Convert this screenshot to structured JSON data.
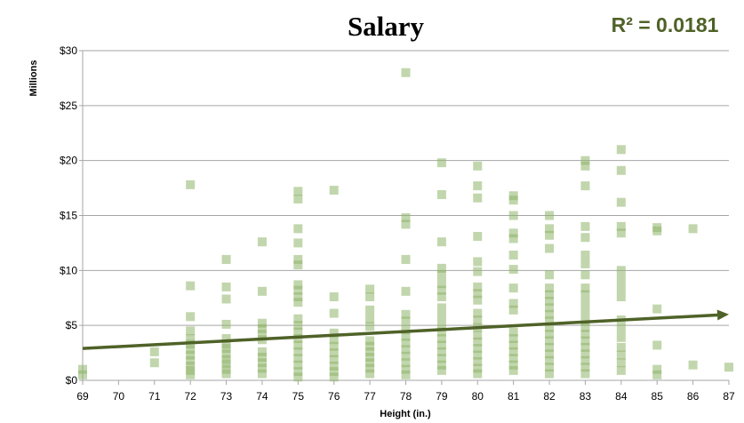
{
  "chart_data": {
    "type": "scatter",
    "title": "Salary",
    "annotation": "R² = 0.0181",
    "xlabel": "Height (in.)",
    "ylabel": "Millions",
    "xlim": [
      69,
      87
    ],
    "ylim": [
      0,
      30
    ],
    "x_ticks": [
      "69",
      "70",
      "71",
      "72",
      "73",
      "74",
      "75",
      "76",
      "77",
      "78",
      "79",
      "80",
      "81",
      "82",
      "83",
      "84",
      "85",
      "86",
      "87"
    ],
    "y_ticks": [
      "$0",
      "$5",
      "$10",
      "$15",
      "$20",
      "$25",
      "$30"
    ],
    "grid": "horizontal",
    "legend": "none",
    "colors": {
      "point": "#8fb56a",
      "trend": "#4f6228",
      "annotation": "#4f6228",
      "grid": "#a6a6a6"
    },
    "trendline": {
      "x": [
        69,
        87
      ],
      "y": [
        2.9,
        6.0
      ]
    },
    "points": [
      {
        "x": 69,
        "y": 0.5
      },
      {
        "x": 69,
        "y": 1.0
      },
      {
        "x": 71,
        "y": 1.6
      },
      {
        "x": 71,
        "y": 2.6
      },
      {
        "x": 72,
        "y": 17.8
      },
      {
        "x": 72,
        "y": 8.6
      },
      {
        "x": 72,
        "y": 5.8
      },
      {
        "x": 72,
        "y": 4.5
      },
      {
        "x": 72,
        "y": 3.8
      },
      {
        "x": 72,
        "y": 3.3
      },
      {
        "x": 72,
        "y": 2.8
      },
      {
        "x": 72,
        "y": 2.3
      },
      {
        "x": 72,
        "y": 1.8
      },
      {
        "x": 72,
        "y": 1.3
      },
      {
        "x": 72,
        "y": 0.9
      },
      {
        "x": 72,
        "y": 0.5
      },
      {
        "x": 73,
        "y": 11.0
      },
      {
        "x": 73,
        "y": 8.5
      },
      {
        "x": 73,
        "y": 7.4
      },
      {
        "x": 73,
        "y": 5.1
      },
      {
        "x": 73,
        "y": 3.8
      },
      {
        "x": 73,
        "y": 3.3
      },
      {
        "x": 73,
        "y": 2.9
      },
      {
        "x": 73,
        "y": 2.4
      },
      {
        "x": 73,
        "y": 1.9
      },
      {
        "x": 73,
        "y": 1.5
      },
      {
        "x": 73,
        "y": 1.0
      },
      {
        "x": 73,
        "y": 0.6
      },
      {
        "x": 74,
        "y": 12.6
      },
      {
        "x": 74,
        "y": 8.1
      },
      {
        "x": 74,
        "y": 5.2
      },
      {
        "x": 74,
        "y": 4.7
      },
      {
        "x": 74,
        "y": 4.2
      },
      {
        "x": 74,
        "y": 3.7
      },
      {
        "x": 74,
        "y": 2.6
      },
      {
        "x": 74,
        "y": 2.1
      },
      {
        "x": 74,
        "y": 1.6
      },
      {
        "x": 74,
        "y": 1.1
      },
      {
        "x": 74,
        "y": 0.6
      },
      {
        "x": 75,
        "y": 17.2
      },
      {
        "x": 75,
        "y": 16.5
      },
      {
        "x": 75,
        "y": 13.8
      },
      {
        "x": 75,
        "y": 12.5
      },
      {
        "x": 75,
        "y": 11.0
      },
      {
        "x": 75,
        "y": 10.5
      },
      {
        "x": 75,
        "y": 8.7
      },
      {
        "x": 75,
        "y": 8.2
      },
      {
        "x": 75,
        "y": 7.6
      },
      {
        "x": 75,
        "y": 7.1
      },
      {
        "x": 75,
        "y": 5.6
      },
      {
        "x": 75,
        "y": 5.0
      },
      {
        "x": 75,
        "y": 4.4
      },
      {
        "x": 75,
        "y": 3.8
      },
      {
        "x": 75,
        "y": 3.2
      },
      {
        "x": 75,
        "y": 2.6
      },
      {
        "x": 75,
        "y": 2.0
      },
      {
        "x": 75,
        "y": 1.4
      },
      {
        "x": 75,
        "y": 0.8
      },
      {
        "x": 75,
        "y": 0.3
      },
      {
        "x": 76,
        "y": 17.3
      },
      {
        "x": 76,
        "y": 7.6
      },
      {
        "x": 76,
        "y": 6.1
      },
      {
        "x": 76,
        "y": 4.3
      },
      {
        "x": 76,
        "y": 3.7
      },
      {
        "x": 76,
        "y": 3.1
      },
      {
        "x": 76,
        "y": 2.5
      },
      {
        "x": 76,
        "y": 1.9
      },
      {
        "x": 76,
        "y": 1.3
      },
      {
        "x": 76,
        "y": 0.8
      },
      {
        "x": 76,
        "y": 0.3
      },
      {
        "x": 77,
        "y": 8.3
      },
      {
        "x": 77,
        "y": 7.6
      },
      {
        "x": 77,
        "y": 6.4
      },
      {
        "x": 77,
        "y": 5.6
      },
      {
        "x": 77,
        "y": 4.9
      },
      {
        "x": 77,
        "y": 3.6
      },
      {
        "x": 77,
        "y": 3.1
      },
      {
        "x": 77,
        "y": 2.6
      },
      {
        "x": 77,
        "y": 2.1
      },
      {
        "x": 77,
        "y": 1.6
      },
      {
        "x": 77,
        "y": 1.1
      },
      {
        "x": 77,
        "y": 0.6
      },
      {
        "x": 78,
        "y": 28.0
      },
      {
        "x": 78,
        "y": 14.8
      },
      {
        "x": 78,
        "y": 14.2
      },
      {
        "x": 78,
        "y": 11.0
      },
      {
        "x": 78,
        "y": 8.1
      },
      {
        "x": 78,
        "y": 6.0
      },
      {
        "x": 78,
        "y": 5.4
      },
      {
        "x": 78,
        "y": 4.6
      },
      {
        "x": 78,
        "y": 4.0
      },
      {
        "x": 78,
        "y": 3.4
      },
      {
        "x": 78,
        "y": 2.8
      },
      {
        "x": 78,
        "y": 2.2
      },
      {
        "x": 78,
        "y": 1.6
      },
      {
        "x": 78,
        "y": 1.0
      },
      {
        "x": 78,
        "y": 0.5
      },
      {
        "x": 79,
        "y": 19.8
      },
      {
        "x": 79,
        "y": 16.9
      },
      {
        "x": 79,
        "y": 12.6
      },
      {
        "x": 79,
        "y": 10.2
      },
      {
        "x": 79,
        "y": 9.6
      },
      {
        "x": 79,
        "y": 8.8
      },
      {
        "x": 79,
        "y": 8.2
      },
      {
        "x": 79,
        "y": 7.6
      },
      {
        "x": 79,
        "y": 6.6
      },
      {
        "x": 79,
        "y": 5.8
      },
      {
        "x": 79,
        "y": 5.0
      },
      {
        "x": 79,
        "y": 4.4
      },
      {
        "x": 79,
        "y": 3.8
      },
      {
        "x": 79,
        "y": 3.2
      },
      {
        "x": 79,
        "y": 2.6
      },
      {
        "x": 79,
        "y": 2.0
      },
      {
        "x": 79,
        "y": 1.4
      },
      {
        "x": 79,
        "y": 0.9
      },
      {
        "x": 80,
        "y": 19.5
      },
      {
        "x": 80,
        "y": 17.7
      },
      {
        "x": 80,
        "y": 16.6
      },
      {
        "x": 80,
        "y": 13.1
      },
      {
        "x": 80,
        "y": 10.8
      },
      {
        "x": 80,
        "y": 9.9
      },
      {
        "x": 80,
        "y": 8.5
      },
      {
        "x": 80,
        "y": 7.9
      },
      {
        "x": 80,
        "y": 7.3
      },
      {
        "x": 80,
        "y": 6.1
      },
      {
        "x": 80,
        "y": 5.5
      },
      {
        "x": 80,
        "y": 4.8
      },
      {
        "x": 80,
        "y": 4.1
      },
      {
        "x": 80,
        "y": 3.5
      },
      {
        "x": 80,
        "y": 2.9
      },
      {
        "x": 80,
        "y": 2.3
      },
      {
        "x": 80,
        "y": 1.7
      },
      {
        "x": 80,
        "y": 1.1
      },
      {
        "x": 80,
        "y": 0.6
      },
      {
        "x": 81,
        "y": 16.8
      },
      {
        "x": 81,
        "y": 16.4
      },
      {
        "x": 81,
        "y": 15.0
      },
      {
        "x": 81,
        "y": 13.4
      },
      {
        "x": 81,
        "y": 12.9
      },
      {
        "x": 81,
        "y": 11.4
      },
      {
        "x": 81,
        "y": 10.1
      },
      {
        "x": 81,
        "y": 8.4
      },
      {
        "x": 81,
        "y": 7.0
      },
      {
        "x": 81,
        "y": 6.4
      },
      {
        "x": 81,
        "y": 4.4
      },
      {
        "x": 81,
        "y": 3.8
      },
      {
        "x": 81,
        "y": 3.2
      },
      {
        "x": 81,
        "y": 2.6
      },
      {
        "x": 81,
        "y": 2.0
      },
      {
        "x": 81,
        "y": 1.4
      },
      {
        "x": 81,
        "y": 0.9
      },
      {
        "x": 82,
        "y": 15.0
      },
      {
        "x": 82,
        "y": 13.8
      },
      {
        "x": 82,
        "y": 13.2
      },
      {
        "x": 82,
        "y": 12.0
      },
      {
        "x": 82,
        "y": 9.6
      },
      {
        "x": 82,
        "y": 8.4
      },
      {
        "x": 82,
        "y": 7.8
      },
      {
        "x": 82,
        "y": 7.2
      },
      {
        "x": 82,
        "y": 6.6
      },
      {
        "x": 82,
        "y": 6.0
      },
      {
        "x": 82,
        "y": 5.4
      },
      {
        "x": 82,
        "y": 4.8
      },
      {
        "x": 82,
        "y": 4.2
      },
      {
        "x": 82,
        "y": 3.6
      },
      {
        "x": 82,
        "y": 3.0
      },
      {
        "x": 82,
        "y": 2.4
      },
      {
        "x": 82,
        "y": 1.8
      },
      {
        "x": 82,
        "y": 1.2
      },
      {
        "x": 82,
        "y": 0.6
      },
      {
        "x": 83,
        "y": 20.0
      },
      {
        "x": 83,
        "y": 19.5
      },
      {
        "x": 83,
        "y": 17.7
      },
      {
        "x": 83,
        "y": 14.0
      },
      {
        "x": 83,
        "y": 13.0
      },
      {
        "x": 83,
        "y": 11.4
      },
      {
        "x": 83,
        "y": 10.6
      },
      {
        "x": 83,
        "y": 9.6
      },
      {
        "x": 83,
        "y": 8.4
      },
      {
        "x": 83,
        "y": 7.8
      },
      {
        "x": 83,
        "y": 7.0
      },
      {
        "x": 83,
        "y": 6.2
      },
      {
        "x": 83,
        "y": 5.4
      },
      {
        "x": 83,
        "y": 4.8
      },
      {
        "x": 83,
        "y": 4.2
      },
      {
        "x": 83,
        "y": 3.6
      },
      {
        "x": 83,
        "y": 3.0
      },
      {
        "x": 83,
        "y": 2.4
      },
      {
        "x": 83,
        "y": 1.8
      },
      {
        "x": 83,
        "y": 1.2
      },
      {
        "x": 83,
        "y": 0.6
      },
      {
        "x": 84,
        "y": 21.0
      },
      {
        "x": 84,
        "y": 19.1
      },
      {
        "x": 84,
        "y": 16.2
      },
      {
        "x": 84,
        "y": 14.0
      },
      {
        "x": 84,
        "y": 13.4
      },
      {
        "x": 84,
        "y": 10.0
      },
      {
        "x": 84,
        "y": 9.2
      },
      {
        "x": 84,
        "y": 8.4
      },
      {
        "x": 84,
        "y": 7.6
      },
      {
        "x": 84,
        "y": 5.5
      },
      {
        "x": 84,
        "y": 4.7
      },
      {
        "x": 84,
        "y": 3.9
      },
      {
        "x": 84,
        "y": 3.0
      },
      {
        "x": 84,
        "y": 2.3
      },
      {
        "x": 84,
        "y": 1.6
      },
      {
        "x": 84,
        "y": 0.9
      },
      {
        "x": 85,
        "y": 13.9
      },
      {
        "x": 85,
        "y": 13.6
      },
      {
        "x": 85,
        "y": 6.5
      },
      {
        "x": 85,
        "y": 3.2
      },
      {
        "x": 85,
        "y": 1.0
      },
      {
        "x": 85,
        "y": 0.5
      },
      {
        "x": 86,
        "y": 13.8
      },
      {
        "x": 86,
        "y": 1.4
      },
      {
        "x": 87,
        "y": 1.2
      }
    ]
  }
}
